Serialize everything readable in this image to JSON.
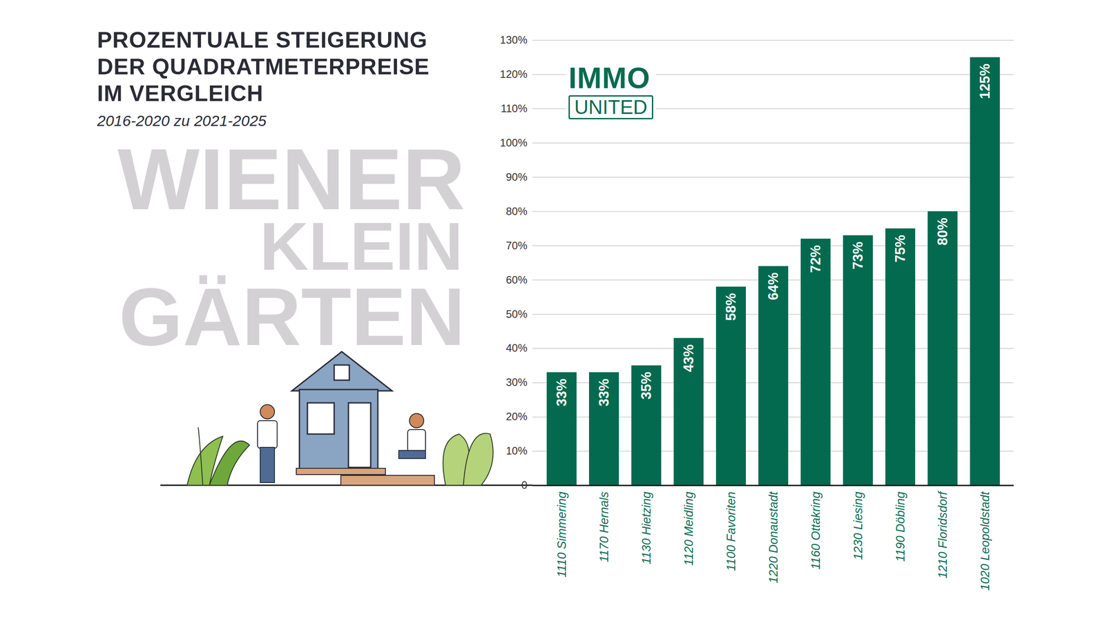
{
  "chart_data": {
    "type": "bar",
    "title": "PROZENTUALE STEIGERUNG\nDER QUADRATMETERPREISE\nIM VERGLEICH",
    "subtitle": "2016-2020 zu 2021-2025",
    "annotations": [
      "WIENER",
      "KLEIN",
      "GÄRTEN",
      "IMMO",
      "UNITED"
    ],
    "categories": [
      "1110 Simmering",
      "1170 Hernals",
      "1130 Hietzing",
      "1120 Meidling",
      "1100 Favoriten",
      "1220 Donaustadt",
      "1160 Ottakring",
      "1230 Liesing",
      "1190 Döbling",
      "1210 Floridsdorf",
      "1020 Leopoldstadt"
    ],
    "values": [
      33,
      33,
      35,
      43,
      58,
      64,
      72,
      73,
      75,
      80,
      125
    ],
    "value_labels": [
      "33%",
      "33%",
      "35%",
      "43%",
      "58%",
      "64%",
      "72%",
      "73%",
      "75%",
      "80%",
      "125%"
    ],
    "color": "#046a4f",
    "ylim": [
      0,
      130
    ],
    "yticks": [
      0,
      {
        "value": 10,
        "label": "10%"
      },
      {
        "value": 20,
        "label": "20%"
      },
      {
        "value": 30,
        "label": "30%"
      },
      {
        "value": 40,
        "label": "40%"
      },
      {
        "value": 50,
        "label": "50%"
      },
      {
        "value": 60,
        "label": "60%"
      },
      {
        "value": 70,
        "label": "70%"
      },
      {
        "value": 80,
        "label": "80%"
      },
      {
        "value": 90,
        "label": "90%"
      },
      {
        "value": 100,
        "label": "100%"
      },
      {
        "value": 110,
        "label": "110%"
      },
      {
        "value": 120,
        "label": "120%"
      },
      {
        "value": 130,
        "label": "130%"
      }
    ],
    "grid": true,
    "data_labels": true
  }
}
